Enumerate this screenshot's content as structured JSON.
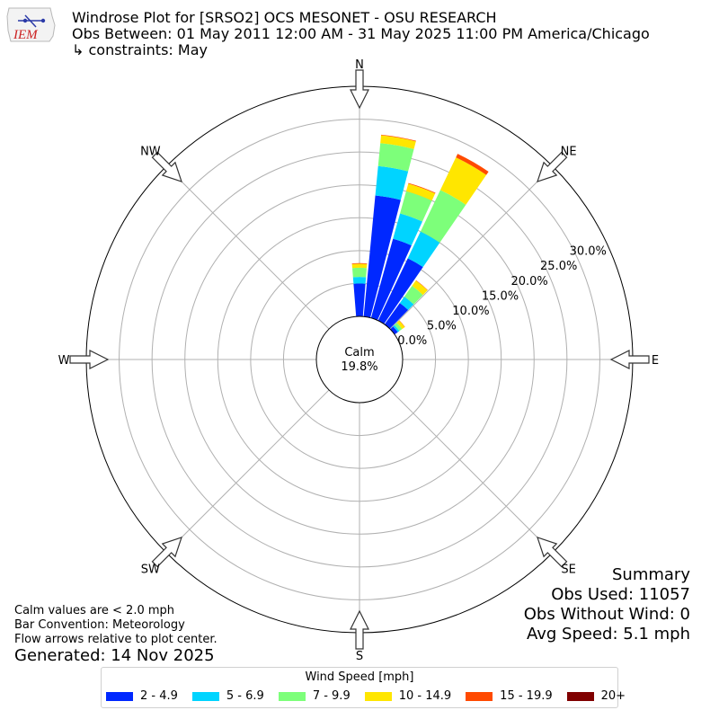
{
  "title_lines": [
    "Windrose Plot for [SRSO2] OCS MESONET - OSU RESEARCH",
    "Obs Between: 01 May 2011 12:00 AM - 31 May 2025 11:00 PM America/Chicago",
    "↳ constraints: May"
  ],
  "logo_text": "IEM",
  "notes": [
    "Calm values are < 2.0 mph",
    "Bar Convention: Meteorology",
    "Flow arrows relative to plot center."
  ],
  "generated": "Generated: 14 Nov 2025",
  "summary": [
    "Summary",
    "Obs Used: 11057",
    "Obs Without Wind: 0",
    "Avg Speed: 5.1 mph"
  ],
  "chart_data": {
    "type": "windrose",
    "direction_labels": [
      {
        "label": "N",
        "deg": 0
      },
      {
        "label": "NE",
        "deg": 45
      },
      {
        "label": "E",
        "deg": 90
      },
      {
        "label": "SE",
        "deg": 135
      },
      {
        "label": "S",
        "deg": 180
      },
      {
        "label": "SW",
        "deg": 225
      },
      {
        "label": "W",
        "deg": 270
      },
      {
        "label": "NW",
        "deg": 315
      }
    ],
    "radial_ticks": [
      0,
      5,
      10,
      15,
      20,
      25,
      30
    ],
    "radial_tick_labels": [
      "0.0%",
      "5.0%",
      "10.0%",
      "15.0%",
      "20.0%",
      "25.0%",
      "30.0%"
    ],
    "radial_max": 35,
    "calm_label": "Calm",
    "calm_value": "19.8%",
    "legend_title": "Wind Speed [mph]",
    "bins": [
      {
        "label": "2 - 4.9",
        "color": "#0028ff"
      },
      {
        "label": "5 - 6.9",
        "color": "#00d4ff"
      },
      {
        "label": "7 - 9.9",
        "color": "#7dff7a"
      },
      {
        "label": "10 - 14.9",
        "color": "#ffe600"
      },
      {
        "label": "15 - 19.9",
        "color": "#ff4a00"
      },
      {
        "label": "20+",
        "color": "#800000"
      }
    ],
    "sectors": [
      {
        "dir_deg": 0,
        "values": [
          5.0,
          1.0,
          1.4,
          0.6,
          0.1,
          0.0
        ]
      },
      {
        "dir_deg": 10,
        "values": [
          18.5,
          4.5,
          3.5,
          1.2,
          0.1,
          0.0
        ]
      },
      {
        "dir_deg": 20,
        "values": [
          12.5,
          4.0,
          3.5,
          1.2,
          0.1,
          0.0
        ]
      },
      {
        "dir_deg": 30,
        "values": [
          10.5,
          4.5,
          7.0,
          5.5,
          0.6,
          0.0
        ]
      },
      {
        "dir_deg": 40,
        "values": [
          4.0,
          1.2,
          2.0,
          1.0,
          0.05,
          0.0
        ]
      },
      {
        "dir_deg": 50,
        "values": [
          0.6,
          0.3,
          0.5,
          0.5,
          0.05,
          0.0
        ]
      }
    ],
    "bar_width_deg": 9
  }
}
